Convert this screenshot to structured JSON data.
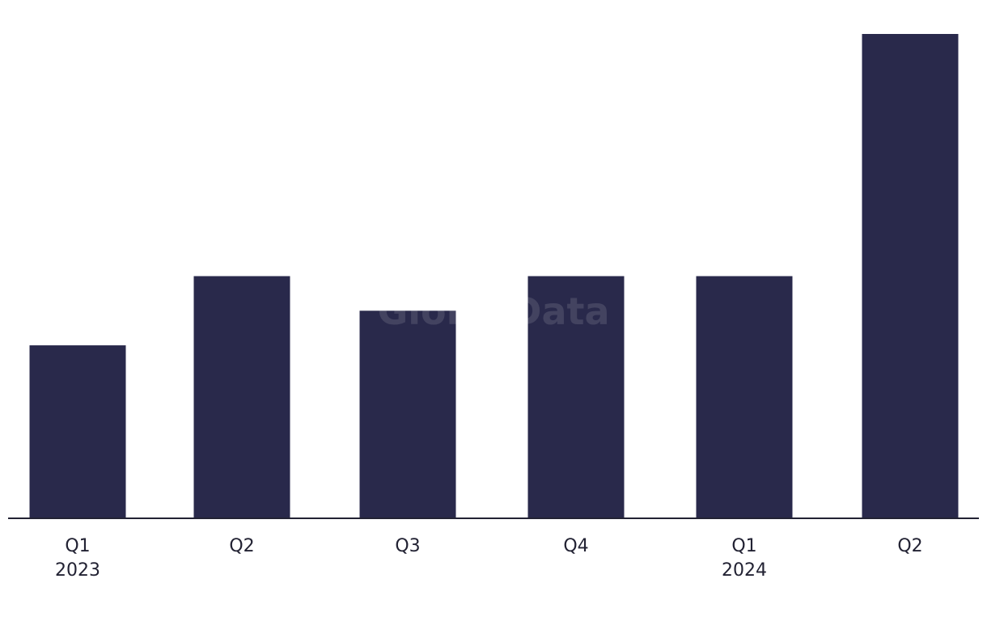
{
  "chart_data": {
    "type": "bar",
    "categories": [
      "Q1",
      "Q2",
      "Q3",
      "Q4",
      "Q1",
      "Q2"
    ],
    "category_years": [
      "2023",
      "",
      "",
      "",
      "2024",
      ""
    ],
    "values": [
      5,
      7,
      6,
      7,
      7,
      14
    ],
    "ylim": [
      0,
      14
    ],
    "title": "",
    "xlabel": "",
    "ylabel": "",
    "grid": false,
    "legend": "none",
    "bar_color": "#29294b",
    "axis_color": "#222233"
  },
  "watermark": {
    "text": "GlobalData"
  }
}
